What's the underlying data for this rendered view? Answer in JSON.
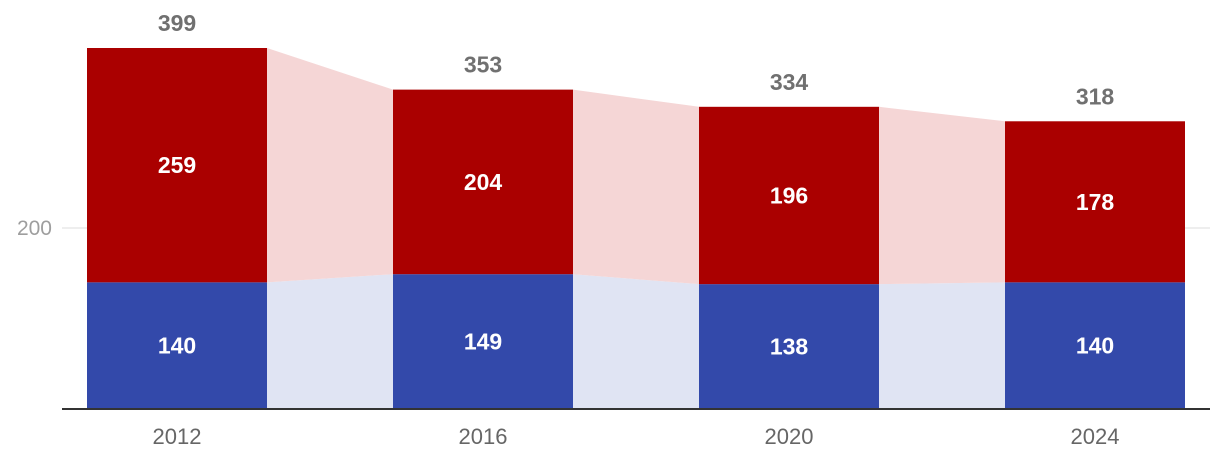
{
  "chart_data": {
    "type": "bar",
    "stacked": true,
    "categories": [
      "2012",
      "2016",
      "2020",
      "2024"
    ],
    "series": [
      {
        "values": [
          140,
          149,
          138,
          140
        ],
        "color": "#3349aa",
        "band_color": "#e0e4f3"
      },
      {
        "values": [
          259,
          204,
          196,
          178
        ],
        "color": "#aa0000",
        "band_color": "#f5d6d6"
      }
    ],
    "totals": [
      "399",
      "353",
      "334",
      "318"
    ],
    "y_ticks": [
      200
    ],
    "y_tick_labels": [
      "200"
    ],
    "ylim": [
      0,
      399
    ],
    "grid": true,
    "connecting_bands": true
  }
}
